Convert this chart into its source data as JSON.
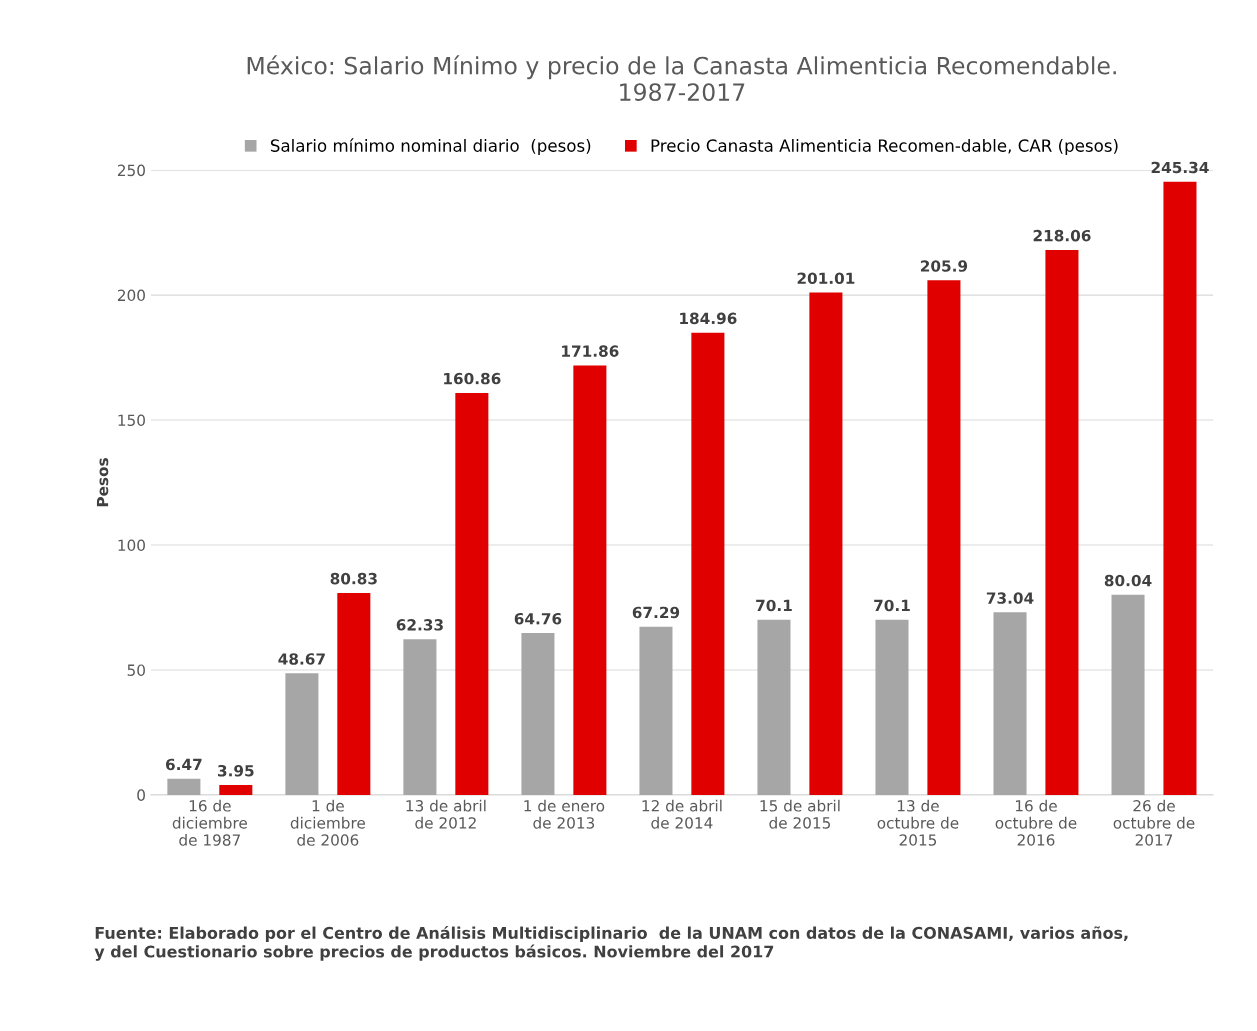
{
  "chart_data": {
    "type": "bar",
    "title": "México: Salario Mínimo y precio de la Canasta Alimenticia Recomendable.\n1987-2017",
    "ylabel": "Pesos",
    "categories": [
      "16 de\ndiciembre\nde 1987",
      "1 de\ndiciembre\nde 2006",
      "13 de abril\nde 2012",
      "1 de enero\nde 2013",
      "12 de abril\nde 2014",
      "15 de abril\nde 2015",
      "13 de\noctubre de\n2015",
      "16 de\noctubre de\n2016",
      "26 de\noctubre de\n2017"
    ],
    "series": [
      {
        "name": "Salario mínimo nominal diario  (pesos)",
        "color": "#a6a6a6",
        "values": [
          6.47,
          48.67,
          62.33,
          64.76,
          67.29,
          70.1,
          70.1,
          73.04,
          80.04
        ]
      },
      {
        "name": "Precio Canasta Alimenticia Recomen-dable, CAR (pesos)",
        "color": "#e00000",
        "values": [
          3.95,
          80.83,
          160.86,
          171.86,
          184.96,
          201.01,
          205.9,
          218.06,
          245.34
        ]
      }
    ],
    "ylim": [
      0,
      250
    ],
    "yticks": [
      0,
      50,
      100,
      150,
      200,
      250
    ],
    "grid": "y",
    "legend": "top",
    "data_labels": true,
    "annotations": [
      "Fuente: Elaborado por el Centro de Análisis Multidisciplinario  de la UNAM con datos de la CONASAMI, varios años,\ny del Cuestionario sobre precios de productos básicos. Noviembre del 2017"
    ]
  }
}
